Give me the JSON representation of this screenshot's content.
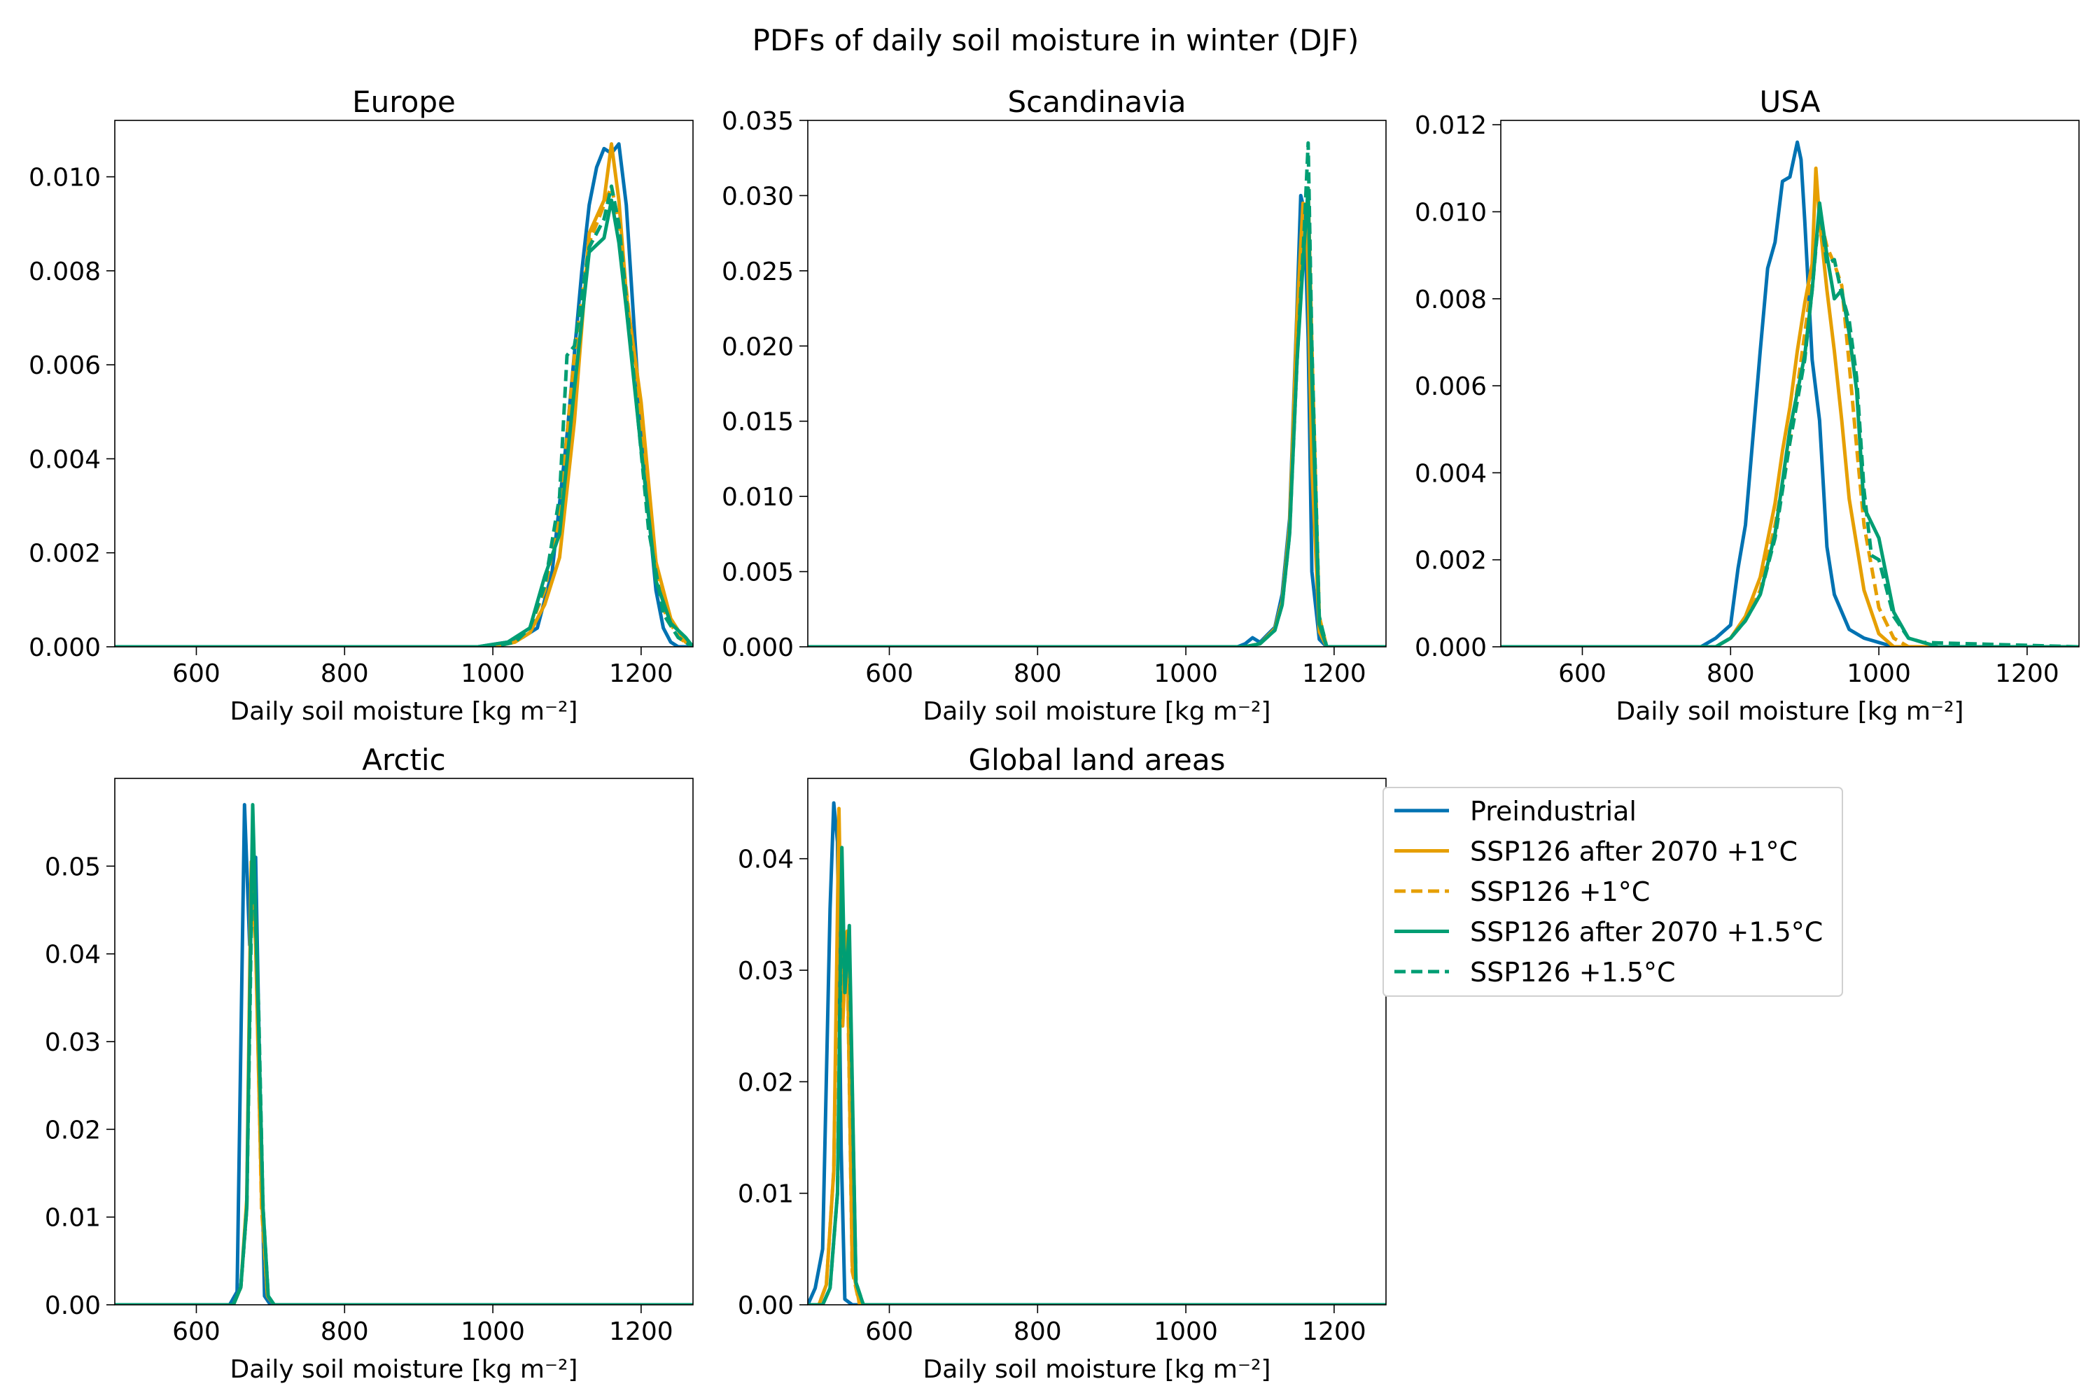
{
  "figure": {
    "suptitle": "PDFs of daily soil moisture in winter (DJF)"
  },
  "colors": {
    "blue": "#0072B2",
    "orange": "#E69F00",
    "green": "#009E73"
  },
  "legend": {
    "position": "right of the lower panels",
    "entries": [
      {
        "label": "Preindustrial",
        "color": "#0072B2",
        "dash": false
      },
      {
        "label": "SSP126 after 2070 +1°C",
        "color": "#E69F00",
        "dash": false
      },
      {
        "label": "SSP126 +1°C",
        "color": "#E69F00",
        "dash": true
      },
      {
        "label": "SSP126 after 2070 +1.5°C",
        "color": "#009E73",
        "dash": false
      },
      {
        "label": "SSP126 +1.5°C",
        "color": "#009E73",
        "dash": true
      }
    ]
  },
  "chart_data": [
    {
      "type": "line",
      "title": "Europe",
      "xlabel": "Daily soil moisture [kg m⁻²]",
      "xlim": [
        490,
        1270
      ],
      "ylim": [
        0,
        0.0112
      ],
      "xticks": [
        "600",
        "800",
        "1000",
        "1200"
      ],
      "yticks": [
        "0.000",
        "0.002",
        "0.004",
        "0.006",
        "0.008",
        "0.010"
      ],
      "series": [
        {
          "name": "Preindustrial",
          "x": [
            490,
            980,
            1000,
            1020,
            1040,
            1060,
            1080,
            1100,
            1120,
            1130,
            1140,
            1150,
            1160,
            1170,
            1180,
            1200,
            1220,
            1230,
            1240,
            1250,
            1270
          ],
          "y": [
            0,
            0,
            5e-05,
            0.0001,
            0.0002,
            0.0004,
            0.0016,
            0.0045,
            0.008,
            0.0094,
            0.0102,
            0.0106,
            0.0105,
            0.0107,
            0.0094,
            0.0045,
            0.0012,
            0.0004,
            0.0001,
            0,
            0
          ]
        },
        {
          "name": "SSP126 after 2070 +1°C",
          "x": [
            490,
            1000,
            1030,
            1050,
            1070,
            1090,
            1110,
            1130,
            1150,
            1160,
            1170,
            1180,
            1200,
            1220,
            1240,
            1260,
            1270
          ],
          "y": [
            0,
            0,
            0.0001,
            0.0003,
            0.0009,
            0.0019,
            0.0048,
            0.0088,
            0.0095,
            0.0107,
            0.0095,
            0.0075,
            0.0052,
            0.0018,
            0.0006,
            0.0001,
            0
          ]
        },
        {
          "name": "SSP126 +1°C",
          "x": [
            490,
            1000,
            1030,
            1050,
            1070,
            1090,
            1110,
            1130,
            1150,
            1160,
            1170,
            1190,
            1210,
            1230,
            1250,
            1270
          ],
          "y": [
            0,
            0,
            0.0001,
            0.0004,
            0.0012,
            0.0028,
            0.0062,
            0.0086,
            0.0094,
            0.0098,
            0.009,
            0.0062,
            0.0028,
            0.0008,
            0.0002,
            0
          ]
        },
        {
          "name": "SSP126 after 2070 +1.5°C",
          "x": [
            490,
            980,
            1000,
            1020,
            1050,
            1070,
            1090,
            1110,
            1130,
            1150,
            1160,
            1170,
            1180,
            1200,
            1220,
            1240,
            1260,
            1270
          ],
          "y": [
            0,
            0,
            5e-05,
            0.0001,
            0.0004,
            0.0015,
            0.0024,
            0.0055,
            0.0084,
            0.0087,
            0.0095,
            0.0086,
            0.0072,
            0.0042,
            0.0014,
            0.0005,
            0.0002,
            0
          ]
        },
        {
          "name": "SSP126 +1.5°C",
          "x": [
            490,
            1000,
            1030,
            1050,
            1070,
            1090,
            1100,
            1110,
            1130,
            1150,
            1160,
            1170,
            1190,
            1210,
            1230,
            1250,
            1270
          ],
          "y": [
            0,
            0,
            0.0001,
            0.0004,
            0.0013,
            0.0032,
            0.0062,
            0.0064,
            0.0085,
            0.0091,
            0.0098,
            0.009,
            0.0058,
            0.0025,
            0.0007,
            0.0002,
            0
          ]
        }
      ]
    },
    {
      "type": "line",
      "title": "Scandinavia",
      "xlabel": "Daily soil moisture [kg m⁻²]",
      "xlim": [
        490,
        1270
      ],
      "ylim": [
        0,
        0.035
      ],
      "xticks": [
        "600",
        "800",
        "1000",
        "1200"
      ],
      "yticks": [
        "0.000",
        "0.005",
        "0.010",
        "0.015",
        "0.020",
        "0.025",
        "0.030",
        "0.035"
      ],
      "series": [
        {
          "name": "Preindustrial",
          "x": [
            490,
            1070,
            1080,
            1090,
            1100,
            1110,
            1120,
            1130,
            1140,
            1150,
            1155,
            1160,
            1165,
            1170,
            1180,
            1190,
            1270
          ],
          "y": [
            0,
            0,
            0.0002,
            0.0006,
            0.0003,
            0.0008,
            0.0013,
            0.0035,
            0.0085,
            0.0225,
            0.03,
            0.029,
            0.0205,
            0.005,
            0.0005,
            0,
            0
          ]
        },
        {
          "name": "SSP126 after 2070 +1°C",
          "x": [
            490,
            1080,
            1100,
            1120,
            1130,
            1140,
            1150,
            1158,
            1163,
            1170,
            1180,
            1190,
            1270
          ],
          "y": [
            0,
            0,
            0.0002,
            0.0012,
            0.003,
            0.008,
            0.022,
            0.0295,
            0.0292,
            0.012,
            0.001,
            0,
            0
          ]
        },
        {
          "name": "SSP126 +1°C",
          "x": [
            490,
            1080,
            1100,
            1120,
            1130,
            1140,
            1150,
            1160,
            1165,
            1170,
            1180,
            1190,
            1270
          ],
          "y": [
            0,
            0,
            0.0002,
            0.0012,
            0.003,
            0.008,
            0.021,
            0.029,
            0.0305,
            0.02,
            0.002,
            0,
            0
          ]
        },
        {
          "name": "SSP126 after 2070 +1.5°C",
          "x": [
            490,
            1080,
            1100,
            1120,
            1130,
            1140,
            1150,
            1160,
            1165,
            1170,
            1180,
            1190,
            1270
          ],
          "y": [
            0,
            0,
            0.0002,
            0.0011,
            0.0028,
            0.0075,
            0.019,
            0.027,
            0.0305,
            0.018,
            0.0015,
            0,
            0
          ]
        },
        {
          "name": "SSP126 +1.5°C",
          "x": [
            490,
            1080,
            1100,
            1120,
            1130,
            1140,
            1150,
            1160,
            1165,
            1170,
            1180,
            1190,
            1270
          ],
          "y": [
            0,
            0,
            0.0002,
            0.0011,
            0.0028,
            0.0075,
            0.019,
            0.028,
            0.0335,
            0.02,
            0.002,
            0,
            0
          ]
        }
      ]
    },
    {
      "type": "line",
      "title": "USA",
      "xlabel": "Daily soil moisture [kg m⁻²]",
      "xlim": [
        490,
        1270
      ],
      "ylim": [
        0,
        0.0121
      ],
      "xticks": [
        "600",
        "800",
        "1000",
        "1200"
      ],
      "yticks": [
        "0.000",
        "0.002",
        "0.004",
        "0.006",
        "0.008",
        "0.010",
        "0.012"
      ],
      "series": [
        {
          "name": "Preindustrial",
          "x": [
            490,
            760,
            780,
            800,
            810,
            820,
            830,
            840,
            850,
            860,
            870,
            880,
            890,
            895,
            900,
            910,
            920,
            930,
            940,
            960,
            980,
            1000,
            1020,
            1270
          ],
          "y": [
            0,
            0,
            0.0002,
            0.0005,
            0.0018,
            0.0028,
            0.0048,
            0.0068,
            0.0087,
            0.0093,
            0.0107,
            0.0108,
            0.0116,
            0.0112,
            0.0098,
            0.0066,
            0.0052,
            0.0023,
            0.0012,
            0.0004,
            0.0002,
            0.0001,
            0,
            0
          ]
        },
        {
          "name": "SSP126 after 2070 +1°C",
          "x": [
            490,
            780,
            800,
            820,
            840,
            860,
            870,
            880,
            890,
            900,
            910,
            915,
            920,
            930,
            940,
            950,
            960,
            980,
            1000,
            1020,
            1270
          ],
          "y": [
            0,
            0,
            0.0002,
            0.0007,
            0.0016,
            0.0033,
            0.0045,
            0.0055,
            0.0068,
            0.0079,
            0.0088,
            0.011,
            0.0098,
            0.0082,
            0.0068,
            0.0052,
            0.0034,
            0.0013,
            0.0003,
            0,
            0
          ]
        },
        {
          "name": "SSP126 +1°C",
          "x": [
            490,
            780,
            800,
            820,
            840,
            860,
            880,
            900,
            910,
            920,
            930,
            940,
            950,
            960,
            970,
            980,
            1000,
            1020,
            1040,
            1270
          ],
          "y": [
            0,
            0,
            0.0002,
            0.0006,
            0.0013,
            0.0028,
            0.0047,
            0.0072,
            0.0085,
            0.0099,
            0.0092,
            0.0088,
            0.0083,
            0.0065,
            0.0046,
            0.0028,
            0.0009,
            0.0002,
            0,
            0
          ]
        },
        {
          "name": "SSP126 after 2070 +1.5°C",
          "x": [
            490,
            780,
            800,
            820,
            840,
            860,
            880,
            900,
            910,
            920,
            930,
            940,
            950,
            960,
            970,
            980,
            1000,
            1020,
            1040,
            1060,
            1080,
            1270
          ],
          "y": [
            0,
            0,
            0.0002,
            0.0006,
            0.0012,
            0.0026,
            0.005,
            0.0067,
            0.0082,
            0.0102,
            0.009,
            0.008,
            0.0082,
            0.0072,
            0.0059,
            0.0032,
            0.0025,
            0.0008,
            0.0002,
            0.0001,
            0,
            0
          ]
        },
        {
          "name": "SSP126 +1.5°C",
          "x": [
            490,
            780,
            800,
            820,
            840,
            860,
            880,
            900,
            910,
            920,
            930,
            940,
            950,
            960,
            970,
            980,
            990,
            1000,
            1020,
            1040,
            1060,
            1270
          ],
          "y": [
            0,
            0,
            0.0002,
            0.0006,
            0.0012,
            0.0025,
            0.0047,
            0.0066,
            0.0082,
            0.0101,
            0.0088,
            0.0089,
            0.0081,
            0.0075,
            0.0062,
            0.0036,
            0.0021,
            0.002,
            0.0007,
            0.0002,
            0.0001,
            0
          ]
        }
      ]
    },
    {
      "type": "line",
      "title": "Arctic",
      "xlabel": "Daily soil moisture [kg m⁻²]",
      "xlim": [
        490,
        1270
      ],
      "ylim": [
        0,
        0.06
      ],
      "xticks": [
        "600",
        "800",
        "1000",
        "1200"
      ],
      "yticks": [
        "0.00",
        "0.01",
        "0.02",
        "0.03",
        "0.04",
        "0.05"
      ],
      "series": [
        {
          "name": "Preindustrial",
          "x": [
            490,
            645,
            655,
            665,
            672,
            680,
            686,
            692,
            700,
            1270
          ],
          "y": [
            0,
            0,
            0.0015,
            0.057,
            0.041,
            0.051,
            0.024,
            0.001,
            0,
            0
          ]
        },
        {
          "name": "SSP126 after 2070 +1°C",
          "x": [
            490,
            650,
            660,
            668,
            674,
            680,
            688,
            696,
            705,
            1270
          ],
          "y": [
            0,
            0,
            0.002,
            0.012,
            0.0505,
            0.041,
            0.012,
            0.001,
            0,
            0
          ]
        },
        {
          "name": "SSP126 +1°C",
          "x": [
            490,
            650,
            660,
            668,
            674,
            680,
            688,
            696,
            705,
            1270
          ],
          "y": [
            0,
            0,
            0.002,
            0.011,
            0.049,
            0.042,
            0.011,
            0.001,
            0,
            0
          ]
        },
        {
          "name": "SSP126 after 2070 +1.5°C",
          "x": [
            490,
            650,
            660,
            668,
            676,
            684,
            690,
            697,
            705,
            1270
          ],
          "y": [
            0,
            0,
            0.002,
            0.011,
            0.057,
            0.032,
            0.011,
            0.001,
            0,
            0
          ]
        },
        {
          "name": "SSP126 +1.5°C",
          "x": [
            490,
            650,
            660,
            668,
            676,
            684,
            690,
            697,
            705,
            1270
          ],
          "y": [
            0,
            0,
            0.002,
            0.011,
            0.053,
            0.034,
            0.011,
            0.001,
            0,
            0
          ]
        }
      ]
    },
    {
      "type": "line",
      "title": "Global land areas",
      "xlabel": "Daily soil moisture [kg m⁻²]",
      "xlim": [
        490,
        1270
      ],
      "ylim": [
        0,
        0.0472
      ],
      "xticks": [
        "600",
        "800",
        "1000",
        "1200"
      ],
      "yticks": [
        "0.00",
        "0.01",
        "0.02",
        "0.03",
        "0.04"
      ],
      "series": [
        {
          "name": "Preindustrial",
          "x": [
            490,
            500,
            510,
            520,
            525,
            530,
            535,
            540,
            550,
            1270
          ],
          "y": [
            0,
            0.0015,
            0.005,
            0.0355,
            0.045,
            0.0415,
            0.014,
            0.0005,
            0,
            0
          ]
        },
        {
          "name": "SSP126 after 2070 +1°C",
          "x": [
            490,
            505,
            515,
            525,
            532,
            537,
            543,
            550,
            560,
            1270
          ],
          "y": [
            0,
            0,
            0.0018,
            0.012,
            0.0445,
            0.025,
            0.0335,
            0.0035,
            0,
            0
          ]
        },
        {
          "name": "SSP126 +1°C",
          "x": [
            490,
            505,
            515,
            525,
            532,
            537,
            543,
            550,
            560,
            1270
          ],
          "y": [
            0,
            0,
            0.0018,
            0.012,
            0.04,
            0.027,
            0.0325,
            0.003,
            0,
            0
          ]
        },
        {
          "name": "SSP126 after 2070 +1.5°C",
          "x": [
            490,
            510,
            520,
            530,
            536,
            540,
            546,
            555,
            565,
            1270
          ],
          "y": [
            0,
            0,
            0.0015,
            0.01,
            0.041,
            0.028,
            0.034,
            0.002,
            0,
            0
          ]
        },
        {
          "name": "SSP126 +1.5°C",
          "x": [
            490,
            510,
            520,
            530,
            536,
            540,
            546,
            555,
            565,
            1270
          ],
          "y": [
            0,
            0,
            0.0015,
            0.01,
            0.038,
            0.029,
            0.0325,
            0.002,
            0,
            0
          ]
        }
      ]
    }
  ]
}
